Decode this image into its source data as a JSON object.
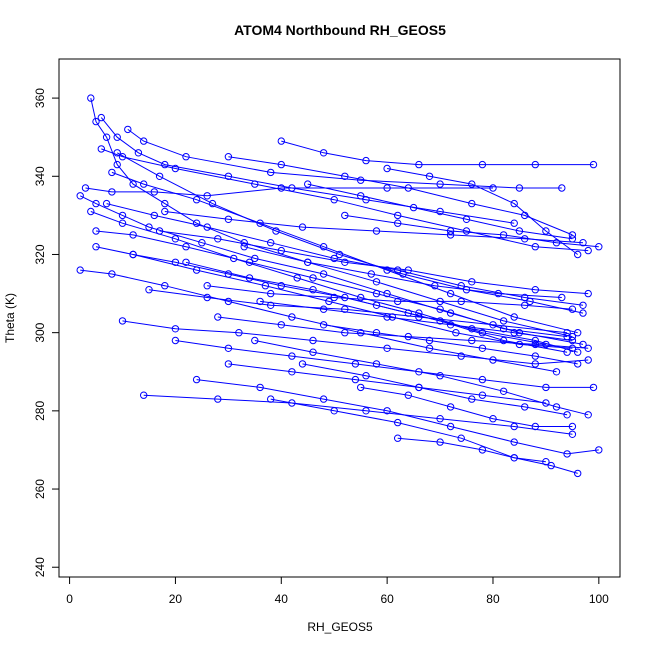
{
  "chart_data": {
    "type": "scatter",
    "title": "ATOM4 Northbound RH_GEOS5",
    "xlabel": "RH_GEOS5",
    "ylabel": "Theta (K)",
    "xlim": [
      -2,
      104
    ],
    "ylim": [
      237.5,
      370
    ],
    "x_ticks": [
      0,
      20,
      40,
      60,
      80,
      100
    ],
    "y_ticks": [
      240,
      260,
      280,
      300,
      320,
      340,
      360
    ],
    "grid": false,
    "legend": "none",
    "series_color": "#0000ff",
    "marker": "open-circle",
    "connected": true,
    "series": [
      {
        "points": [
          [
            4,
            360
          ],
          [
            5,
            354
          ],
          [
            7,
            350
          ],
          [
            9,
            343
          ],
          [
            12,
            338
          ],
          [
            18,
            333
          ],
          [
            24,
            328
          ],
          [
            33,
            323
          ],
          [
            45,
            318
          ],
          [
            58,
            313
          ],
          [
            70,
            308
          ],
          [
            82,
            303
          ],
          [
            95,
            299
          ]
        ]
      },
      {
        "points": [
          [
            2,
            335
          ],
          [
            5,
            333
          ],
          [
            10,
            330
          ],
          [
            15,
            327
          ],
          [
            25,
            323
          ],
          [
            35,
            319
          ],
          [
            48,
            315
          ],
          [
            60,
            310
          ],
          [
            72,
            305
          ],
          [
            85,
            300
          ],
          [
            97,
            297
          ]
        ]
      },
      {
        "points": [
          [
            5,
            322
          ],
          [
            12,
            320
          ],
          [
            20,
            318
          ],
          [
            30,
            315
          ],
          [
            40,
            312
          ],
          [
            52,
            309
          ],
          [
            64,
            305
          ],
          [
            76,
            301
          ],
          [
            88,
            298
          ],
          [
            96,
            295
          ]
        ]
      },
      {
        "points": [
          [
            6,
            347
          ],
          [
            10,
            345
          ],
          [
            20,
            342
          ],
          [
            35,
            338
          ],
          [
            50,
            334
          ],
          [
            62,
            330
          ],
          [
            75,
            326
          ],
          [
            88,
            322
          ],
          [
            98,
            321
          ]
        ]
      },
      {
        "points": [
          [
            11,
            352
          ],
          [
            14,
            349
          ],
          [
            22,
            345
          ],
          [
            38,
            341
          ],
          [
            55,
            339
          ],
          [
            70,
            338
          ],
          [
            85,
            337
          ],
          [
            93,
            337
          ]
        ]
      },
      {
        "points": [
          [
            3,
            337
          ],
          [
            8,
            336
          ],
          [
            16,
            336
          ],
          [
            26,
            335
          ],
          [
            40,
            337
          ],
          [
            60,
            337
          ],
          [
            80,
            337
          ]
        ]
      },
      {
        "points": [
          [
            5,
            326
          ],
          [
            12,
            325
          ],
          [
            22,
            322
          ],
          [
            34,
            318
          ],
          [
            46,
            314
          ],
          [
            58,
            310
          ],
          [
            70,
            306
          ],
          [
            82,
            301
          ],
          [
            94,
            299
          ]
        ]
      },
      {
        "points": [
          [
            2,
            316
          ],
          [
            8,
            315
          ],
          [
            18,
            312
          ],
          [
            30,
            308
          ],
          [
            42,
            304
          ],
          [
            55,
            300
          ],
          [
            68,
            296
          ],
          [
            80,
            293
          ],
          [
            92,
            290
          ]
        ]
      },
      {
        "points": [
          [
            8,
            341
          ],
          [
            14,
            338
          ],
          [
            24,
            334
          ],
          [
            36,
            328
          ],
          [
            48,
            322
          ],
          [
            60,
            316
          ],
          [
            72,
            310
          ],
          [
            84,
            304
          ],
          [
            96,
            300
          ]
        ]
      },
      {
        "points": [
          [
            4,
            331
          ],
          [
            10,
            328
          ],
          [
            20,
            324
          ],
          [
            31,
            319
          ],
          [
            43,
            314
          ],
          [
            55,
            309
          ],
          [
            66,
            305
          ],
          [
            78,
            300
          ],
          [
            90,
            297
          ]
        ]
      },
      {
        "points": [
          [
            6,
            355
          ],
          [
            9,
            350
          ],
          [
            13,
            346
          ],
          [
            18,
            343
          ],
          [
            30,
            340
          ],
          [
            42,
            337
          ],
          [
            56,
            334
          ],
          [
            70,
            331
          ],
          [
            84,
            328
          ]
        ]
      },
      {
        "points": [
          [
            10,
            303
          ],
          [
            20,
            301
          ],
          [
            32,
            300
          ],
          [
            46,
            298
          ],
          [
            60,
            296
          ],
          [
            74,
            294
          ],
          [
            88,
            292
          ],
          [
            98,
            293
          ]
        ]
      },
      {
        "points": [
          [
            20,
            298
          ],
          [
            30,
            296
          ],
          [
            42,
            294
          ],
          [
            54,
            292
          ],
          [
            66,
            290
          ],
          [
            78,
            288
          ],
          [
            90,
            286
          ],
          [
            99,
            286
          ]
        ]
      },
      {
        "points": [
          [
            14,
            284
          ],
          [
            28,
            283
          ],
          [
            42,
            282
          ],
          [
            56,
            280
          ],
          [
            70,
            278
          ],
          [
            84,
            276
          ],
          [
            95,
            274
          ]
        ]
      },
      {
        "points": [
          [
            24,
            288
          ],
          [
            36,
            286
          ],
          [
            48,
            283
          ],
          [
            60,
            280
          ],
          [
            72,
            276
          ],
          [
            84,
            272
          ],
          [
            94,
            269
          ],
          [
            100,
            270
          ]
        ]
      },
      {
        "points": [
          [
            38,
            283
          ],
          [
            50,
            280
          ],
          [
            62,
            277
          ],
          [
            74,
            273
          ],
          [
            84,
            268
          ],
          [
            91,
            266
          ],
          [
            96,
            264
          ]
        ]
      },
      {
        "points": [
          [
            40,
            349
          ],
          [
            48,
            346
          ],
          [
            56,
            344
          ],
          [
            66,
            343
          ],
          [
            78,
            343
          ],
          [
            88,
            343
          ],
          [
            99,
            343
          ]
        ]
      },
      {
        "points": [
          [
            30,
            345
          ],
          [
            40,
            343
          ],
          [
            52,
            340
          ],
          [
            64,
            337
          ],
          [
            76,
            333
          ],
          [
            86,
            330
          ],
          [
            95,
            325
          ]
        ]
      },
      {
        "points": [
          [
            18,
            331
          ],
          [
            30,
            329
          ],
          [
            44,
            327
          ],
          [
            58,
            326
          ],
          [
            72,
            325
          ],
          [
            86,
            324
          ],
          [
            97,
            323
          ]
        ]
      },
      {
        "points": [
          [
            15,
            311
          ],
          [
            26,
            309
          ],
          [
            38,
            307
          ],
          [
            52,
            306
          ],
          [
            66,
            304
          ],
          [
            80,
            302
          ],
          [
            94,
            300
          ]
        ]
      },
      {
        "points": [
          [
            22,
            318
          ],
          [
            34,
            314
          ],
          [
            46,
            311
          ],
          [
            58,
            307
          ],
          [
            70,
            303
          ],
          [
            82,
            298
          ],
          [
            94,
            295
          ]
        ]
      },
      {
        "points": [
          [
            28,
            304
          ],
          [
            40,
            302
          ],
          [
            52,
            300
          ],
          [
            64,
            299
          ],
          [
            76,
            298
          ],
          [
            88,
            297
          ],
          [
            98,
            296
          ]
        ]
      },
      {
        "points": [
          [
            35,
            298
          ],
          [
            46,
            295
          ],
          [
            58,
            292
          ],
          [
            70,
            289
          ],
          [
            82,
            285
          ],
          [
            92,
            281
          ],
          [
            98,
            279
          ]
        ]
      },
      {
        "points": [
          [
            44,
            292
          ],
          [
            56,
            289
          ],
          [
            66,
            286
          ],
          [
            76,
            283
          ],
          [
            86,
            281
          ],
          [
            94,
            279
          ]
        ]
      },
      {
        "points": [
          [
            26,
            312
          ],
          [
            38,
            310
          ],
          [
            50,
            309
          ],
          [
            62,
            308
          ],
          [
            74,
            308
          ],
          [
            86,
            307
          ],
          [
            95,
            306
          ]
        ]
      },
      {
        "points": [
          [
            9,
            346
          ],
          [
            17,
            340
          ],
          [
            27,
            333
          ],
          [
            39,
            326
          ],
          [
            51,
            320
          ],
          [
            63,
            315
          ],
          [
            75,
            311
          ],
          [
            87,
            308
          ],
          [
            97,
            305
          ]
        ]
      },
      {
        "points": [
          [
            12,
            320
          ],
          [
            24,
            316
          ],
          [
            37,
            312
          ],
          [
            49,
            308
          ],
          [
            61,
            304
          ],
          [
            73,
            300
          ],
          [
            85,
            297
          ],
          [
            95,
            296
          ]
        ]
      },
      {
        "points": [
          [
            33,
            322
          ],
          [
            45,
            318
          ],
          [
            57,
            315
          ],
          [
            69,
            312
          ],
          [
            81,
            310
          ],
          [
            93,
            309
          ]
        ]
      },
      {
        "points": [
          [
            52,
            330
          ],
          [
            62,
            328
          ],
          [
            72,
            326
          ],
          [
            82,
            325
          ],
          [
            92,
            323
          ],
          [
            100,
            322
          ]
        ]
      },
      {
        "points": [
          [
            60,
            342
          ],
          [
            68,
            340
          ],
          [
            76,
            338
          ],
          [
            84,
            333
          ],
          [
            90,
            326
          ],
          [
            96,
            320
          ]
        ]
      },
      {
        "points": [
          [
            48,
            302
          ],
          [
            58,
            300
          ],
          [
            68,
            298
          ],
          [
            78,
            296
          ],
          [
            88,
            294
          ],
          [
            96,
            292
          ]
        ]
      },
      {
        "points": [
          [
            55,
            286
          ],
          [
            64,
            284
          ],
          [
            72,
            281
          ],
          [
            80,
            278
          ],
          [
            88,
            276
          ],
          [
            95,
            276
          ]
        ]
      },
      {
        "points": [
          [
            62,
            273
          ],
          [
            70,
            272
          ],
          [
            78,
            270
          ],
          [
            84,
            268
          ],
          [
            90,
            267
          ]
        ]
      },
      {
        "points": [
          [
            30,
            292
          ],
          [
            42,
            290
          ],
          [
            54,
            288
          ],
          [
            66,
            286
          ],
          [
            78,
            284
          ],
          [
            90,
            282
          ]
        ]
      },
      {
        "points": [
          [
            17,
            326
          ],
          [
            28,
            324
          ],
          [
            40,
            321
          ],
          [
            52,
            318
          ],
          [
            64,
            316
          ],
          [
            76,
            313
          ],
          [
            88,
            311
          ],
          [
            98,
            310
          ]
        ]
      },
      {
        "points": [
          [
            7,
            333
          ],
          [
            16,
            330
          ],
          [
            26,
            327
          ],
          [
            38,
            323
          ],
          [
            50,
            319
          ],
          [
            62,
            316
          ],
          [
            74,
            312
          ],
          [
            86,
            309
          ],
          [
            97,
            307
          ]
        ]
      },
      {
        "points": [
          [
            45,
            338
          ],
          [
            55,
            335
          ],
          [
            65,
            332
          ],
          [
            75,
            329
          ],
          [
            85,
            326
          ],
          [
            95,
            324
          ]
        ]
      },
      {
        "points": [
          [
            36,
            308
          ],
          [
            48,
            306
          ],
          [
            60,
            304
          ],
          [
            72,
            302
          ],
          [
            84,
            300
          ],
          [
            95,
            298
          ]
        ]
      }
    ]
  }
}
